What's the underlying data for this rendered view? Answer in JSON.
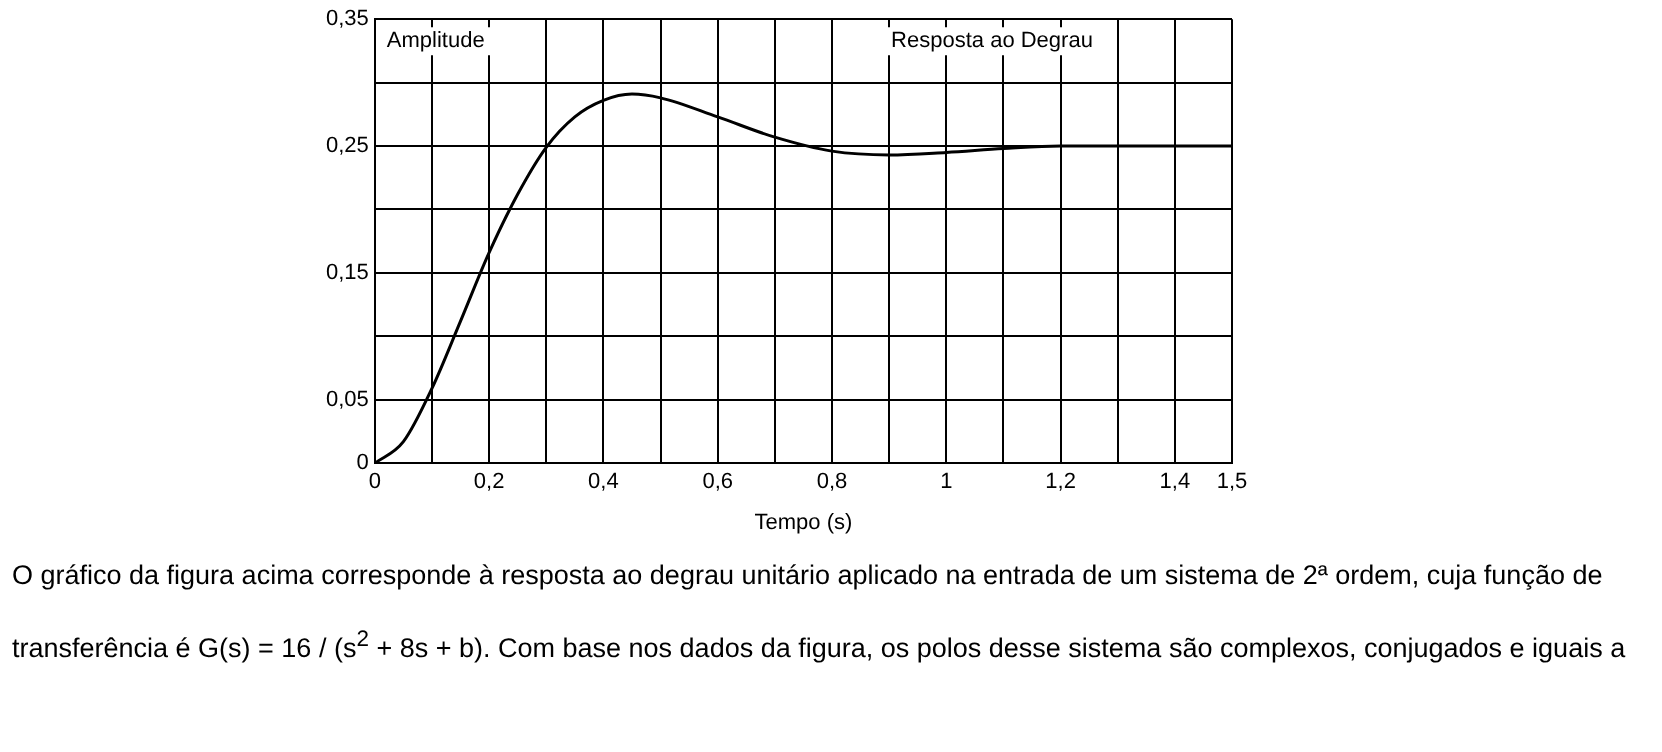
{
  "chart_data": {
    "type": "line",
    "title": "Resposta ao Degrau",
    "ylabel": "Amplitude",
    "xlabel": "Tempo (s)",
    "x": [
      0,
      0.05,
      0.1,
      0.15,
      0.2,
      0.25,
      0.3,
      0.35,
      0.4,
      0.45,
      0.5,
      0.6,
      0.7,
      0.8,
      0.9,
      1.0,
      1.1,
      1.2,
      1.3,
      1.4,
      1.5
    ],
    "series": [
      {
        "color": "#000000",
        "values": [
          0,
          0.017,
          0.059,
          0.112,
          0.166,
          0.212,
          0.249,
          0.273,
          0.286,
          0.291,
          0.288,
          0.273,
          0.257,
          0.246,
          0.243,
          0.245,
          0.248,
          0.25,
          0.25,
          0.25,
          0.25
        ]
      }
    ],
    "xlim": [
      0,
      1.5
    ],
    "xticks": [
      {
        "value": 0,
        "label": "0"
      },
      {
        "value": 0.1,
        "label": null
      },
      {
        "value": 0.2,
        "label": "0,2"
      },
      {
        "value": 0.3,
        "label": null
      },
      {
        "value": 0.4,
        "label": "0,4"
      },
      {
        "value": 0.5,
        "label": null
      },
      {
        "value": 0.6,
        "label": "0,6"
      },
      {
        "value": 0.7,
        "label": null
      },
      {
        "value": 0.8,
        "label": "0,8"
      },
      {
        "value": 0.9,
        "label": null
      },
      {
        "value": 1,
        "label": "1"
      },
      {
        "value": 1.1,
        "label": null
      },
      {
        "value": 1.2,
        "label": "1,2"
      },
      {
        "value": 1.3,
        "label": null
      },
      {
        "value": 1.4,
        "label": "1,4"
      },
      {
        "value": 1.5,
        "label": "1,5"
      }
    ],
    "ylim": [
      0,
      0.35
    ],
    "yticks": [
      {
        "value": 0,
        "label": "0"
      },
      {
        "value": 0.05,
        "label": "0,05"
      },
      {
        "value": 0.1,
        "label": null
      },
      {
        "value": 0.15,
        "label": "0,15"
      },
      {
        "value": 0.2,
        "label": null
      },
      {
        "value": 0.25,
        "label": "0,25"
      },
      {
        "value": 0.3,
        "label": null
      },
      {
        "value": 0.35,
        "label": "0,35"
      }
    ],
    "grid": true,
    "legend": false,
    "marker": "none",
    "line_style": "solid",
    "annotations": [
      "O gráfico da figura acima corresponde à resposta ao degrau unitário aplicado na entrada de um sistema de 2ª ordem, cuja função de transferência é G(s) = 16 / (s$^{2}$ + 8s + b). Com base nos dados da figura, os polos desse sistema são complexos, conjugados e iguais a"
    ]
  }
}
